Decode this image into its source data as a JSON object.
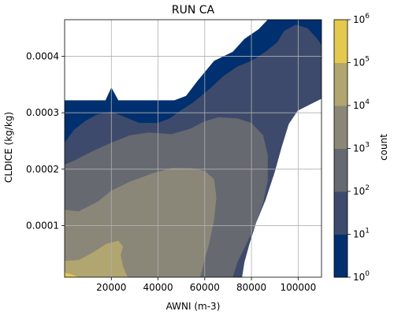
{
  "chart_data": {
    "type": "contourf",
    "title": "RUN CA",
    "xlabel": "AWNI (m-3)",
    "ylabel": "CLDICE (kg/kg)",
    "xlim": [
      0,
      110000
    ],
    "ylim": [
      8.5e-06,
      0.000465
    ],
    "x_ticks": [
      20000,
      40000,
      60000,
      80000,
      100000
    ],
    "x_tick_labels": [
      "20000",
      "40000",
      "60000",
      "80000",
      "100000"
    ],
    "y_ticks": [
      0.0001,
      0.0002,
      0.0003,
      0.0004
    ],
    "y_tick_labels": [
      "0.0001",
      "0.0002",
      "0.0003",
      "0.0004"
    ],
    "grid": true,
    "colorbar": {
      "label": "count",
      "scale": "log",
      "levels": [
        1,
        10,
        100,
        1000,
        10000,
        100000,
        1000000
      ],
      "tick_labels": [
        {
          "base": "10",
          "exp": "0"
        },
        {
          "base": "10",
          "exp": "1"
        },
        {
          "base": "10",
          "exp": "2"
        },
        {
          "base": "10",
          "exp": "3"
        },
        {
          "base": "10",
          "exp": "4"
        },
        {
          "base": "10",
          "exp": "5"
        },
        {
          "base": "10",
          "exp": "6"
        }
      ],
      "colors": [
        "#00306f",
        "#3d4a6b",
        "#666970",
        "#8a8779",
        "#b1a570",
        "#e3c94f"
      ]
    },
    "regions": [
      {
        "level_min": 1,
        "level_max": 10,
        "outline": [
          [
            0,
            8.5e-06
          ],
          [
            0,
            0.000322
          ],
          [
            17500,
            0.000322
          ],
          [
            20000,
            0.000345
          ],
          [
            23000,
            0.000322
          ],
          [
            47000,
            0.000322
          ],
          [
            52000,
            0.00033
          ],
          [
            57000,
            0.000357
          ],
          [
            64000,
            0.000392
          ],
          [
            72000,
            0.000408
          ],
          [
            77000,
            0.000431
          ],
          [
            83000,
            0.000448
          ],
          [
            87000,
            0.000465
          ],
          [
            110000,
            0.000465
          ],
          [
            110000,
            0.000325
          ],
          [
            97000,
            0.000298
          ],
          [
            91000,
            0.00026
          ],
          [
            88000,
            0.000225
          ],
          [
            85000,
            0.000185
          ],
          [
            82000,
            0.000155
          ],
          [
            79000,
            0.000125
          ],
          [
            76000,
            9e-05
          ],
          [
            74000,
            5e-05
          ],
          [
            73000,
            8.5e-06
          ]
        ]
      },
      {
        "level_min": 10,
        "level_max": 100,
        "outline": [
          [
            0,
            8.5e-06
          ],
          [
            0,
            0.000247
          ],
          [
            4000,
            0.00027
          ],
          [
            9000,
            0.000286
          ],
          [
            14000,
            0.000297
          ],
          [
            20000,
            0.000302
          ],
          [
            26000,
            0.000292
          ],
          [
            32000,
            0.000282
          ],
          [
            40000,
            0.000282
          ],
          [
            45000,
            0.00029
          ],
          [
            50000,
            0.000305
          ],
          [
            55000,
            0.000318
          ],
          [
            62000,
            0.000342
          ],
          [
            68000,
            0.000365
          ],
          [
            74000,
            0.000382
          ],
          [
            80000,
            0.000392
          ],
          [
            86000,
            0.000408
          ],
          [
            91000,
            0.000425
          ],
          [
            94000,
            0.000445
          ],
          [
            99000,
            0.000456
          ],
          [
            104000,
            0.00045
          ],
          [
            108000,
            0.000432
          ],
          [
            110000,
            0.00042
          ],
          [
            110000,
            0.000325
          ],
          [
            100000,
            0.000305
          ],
          [
            96000,
            0.00028
          ],
          [
            93000,
            0.00024
          ],
          [
            90000,
            0.000195
          ],
          [
            86000,
            0.000145
          ],
          [
            82000,
            0.000105
          ],
          [
            79000,
            6.5e-05
          ],
          [
            77000,
            3.5e-05
          ],
          [
            76000,
            8.5e-06
          ]
        ]
      },
      {
        "level_min": 100,
        "level_max": 1000,
        "outline": [
          [
            0,
            8.5e-06
          ],
          [
            0,
            0.000208
          ],
          [
            5000,
            0.000217
          ],
          [
            12000,
            0.000232
          ],
          [
            20000,
            0.000247
          ],
          [
            28000,
            0.00026
          ],
          [
            36000,
            0.000265
          ],
          [
            46000,
            0.000262
          ],
          [
            54000,
            0.000272
          ],
          [
            60000,
            0.000285
          ],
          [
            66000,
            0.000292
          ],
          [
            74000,
            0.00029
          ],
          [
            80000,
            0.000282
          ],
          [
            85000,
            0.00026
          ],
          [
            87000,
            0.000225
          ],
          [
            87000,
            0.00018
          ],
          [
            85000,
            0.00014
          ],
          [
            81000,
            9.5e-05
          ],
          [
            77000,
            6e-05
          ],
          [
            74000,
            3.5e-05
          ],
          [
            72000,
            8.5e-06
          ]
        ]
      },
      {
        "level_min": 1000,
        "level_max": 10000,
        "outline": [
          [
            0,
            8.5e-06
          ],
          [
            0,
            0.000128
          ],
          [
            6000,
            0.000125
          ],
          [
            14000,
            0.000142
          ],
          [
            20000,
            0.000162
          ],
          [
            28000,
            0.000178
          ],
          [
            38000,
            0.000193
          ],
          [
            46000,
            0.000202
          ],
          [
            54000,
            0.000202
          ],
          [
            60000,
            0.000197
          ],
          [
            64000,
            0.000182
          ],
          [
            65000,
            0.00015
          ],
          [
            64000,
            0.00011
          ],
          [
            62000,
            7e-05
          ],
          [
            60000,
            4e-05
          ],
          [
            58000,
            8.5e-06
          ]
        ]
      },
      {
        "level_min": 10000,
        "level_max": 100000,
        "outline": [
          [
            0,
            8.5e-06
          ],
          [
            0,
            3.75e-05
          ],
          [
            6000,
            3.9e-05
          ],
          [
            12000,
            5.2e-05
          ],
          [
            18000,
            6.8e-05
          ],
          [
            23000,
            7.3e-05
          ],
          [
            25000,
            6.3e-05
          ],
          [
            24000,
            4.8e-05
          ],
          [
            25000,
            2.8e-05
          ],
          [
            27000,
            8.5e-06
          ]
        ]
      },
      {
        "level_min": 100000,
        "level_max": 1000000,
        "outline": [
          [
            0,
            8.5e-06
          ],
          [
            0,
            1.65e-05
          ],
          [
            3000,
            1.35e-05
          ],
          [
            6000,
            8.5e-06
          ]
        ]
      }
    ]
  }
}
